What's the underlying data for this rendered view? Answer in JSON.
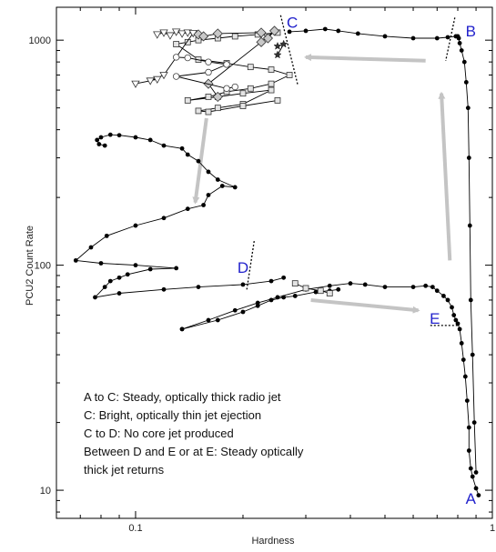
{
  "chart_data": {
    "type": "scatter",
    "xlabel": "Hardness",
    "ylabel": "PCU2 Count Rate",
    "xscale": "log",
    "yscale": "log",
    "xlim": [
      0.06,
      1.0
    ],
    "ylim": [
      7.5,
      1400
    ],
    "xticks": [
      {
        "value": 0.1,
        "label": "0.1"
      },
      {
        "value": 1,
        "label": "1"
      }
    ],
    "yticks": [
      {
        "value": 10,
        "label": "10"
      },
      {
        "value": 100,
        "label": "100"
      },
      {
        "value": 1000,
        "label": "1000"
      }
    ],
    "grid": false,
    "marker_labels": [
      {
        "text": "A",
        "x": 0.87,
        "y": 9.2
      },
      {
        "text": "B",
        "x": 0.87,
        "y": 1100
      },
      {
        "text": "C",
        "x": 0.275,
        "y": 1200
      },
      {
        "text": "D",
        "x": 0.2,
        "y": 98
      },
      {
        "text": "E",
        "x": 0.69,
        "y": 58
      }
    ],
    "annotation_lines": [
      "A to C: Steady, optically thick radio jet",
      "C: Bright, optically thin jet ejection",
      "C to D: No core jet produced",
      "Between D and E or at E: Steady optically",
      "thick jet returns"
    ],
    "jet_lines": [
      {
        "from": [
          0.255,
          1290
        ],
        "to": [
          0.285,
          630
        ]
      },
      {
        "from": [
          0.785,
          1260
        ],
        "to": [
          0.74,
          810
        ]
      },
      {
        "from": [
          0.215,
          128
        ],
        "to": [
          0.205,
          78
        ]
      },
      {
        "from": [
          0.67,
          54
        ],
        "to": [
          0.8,
          54
        ]
      }
    ],
    "arrows": [
      {
        "from": [
          0.65,
          810
        ],
        "to": [
          0.3,
          840
        ]
      },
      {
        "from": [
          0.76,
          105
        ],
        "to": [
          0.72,
          580
        ]
      },
      {
        "from": [
          0.158,
          450
        ],
        "to": [
          0.147,
          190
        ]
      },
      {
        "from": [
          0.31,
          70
        ],
        "to": [
          0.62,
          63
        ]
      }
    ],
    "series": [
      {
        "marker": "filled-circle",
        "points": [
          [
            0.915,
            9.5
          ],
          [
            0.9,
            10.2
          ],
          [
            0.88,
            11.5
          ],
          [
            0.87,
            12.5
          ],
          [
            0.86,
            15
          ],
          [
            0.86,
            19
          ],
          [
            0.85,
            25
          ],
          [
            0.84,
            32
          ],
          [
            0.83,
            38
          ],
          [
            0.82,
            45
          ],
          [
            0.81,
            52
          ],
          [
            0.8,
            55
          ],
          [
            0.79,
            57
          ],
          [
            0.78,
            60
          ],
          [
            0.77,
            65
          ],
          [
            0.75,
            70
          ],
          [
            0.73,
            73
          ],
          [
            0.7,
            77
          ],
          [
            0.68,
            80
          ],
          [
            0.65,
            81
          ],
          [
            0.6,
            80
          ],
          [
            0.5,
            80
          ],
          [
            0.44,
            82
          ],
          [
            0.4,
            83
          ],
          [
            0.35,
            81
          ],
          [
            0.3,
            78
          ],
          [
            0.25,
            72
          ],
          [
            0.22,
            68
          ],
          [
            0.19,
            63
          ],
          [
            0.16,
            57
          ],
          [
            0.135,
            52
          ]
        ]
      },
      {
        "marker": "filled-circle",
        "points": [
          [
            0.135,
            52
          ],
          [
            0.17,
            57
          ],
          [
            0.2,
            62
          ],
          [
            0.22,
            66
          ],
          [
            0.24,
            70
          ],
          [
            0.26,
            72
          ],
          [
            0.28,
            73
          ],
          [
            0.32,
            76
          ],
          [
            0.35,
            77
          ],
          [
            0.37,
            78
          ]
        ]
      },
      {
        "marker": "filled-circle",
        "points": [
          [
            0.26,
            88
          ],
          [
            0.24,
            85
          ],
          [
            0.2,
            82
          ],
          [
            0.15,
            80
          ],
          [
            0.12,
            78
          ],
          [
            0.09,
            75
          ],
          [
            0.077,
            72
          ],
          [
            0.082,
            80
          ],
          [
            0.085,
            85
          ],
          [
            0.09,
            88
          ],
          [
            0.095,
            91
          ],
          [
            0.11,
            96
          ],
          [
            0.13,
            97
          ],
          [
            0.1,
            100
          ],
          [
            0.08,
            102
          ],
          [
            0.068,
            105
          ],
          [
            0.075,
            120
          ],
          [
            0.083,
            135
          ],
          [
            0.1,
            150
          ],
          [
            0.12,
            162
          ],
          [
            0.14,
            178
          ],
          [
            0.155,
            185
          ],
          [
            0.16,
            205
          ],
          [
            0.175,
            225
          ],
          [
            0.19,
            222
          ],
          [
            0.17,
            240
          ],
          [
            0.16,
            260
          ],
          [
            0.15,
            290
          ],
          [
            0.14,
            310
          ],
          [
            0.135,
            330
          ],
          [
            0.12,
            340
          ],
          [
            0.11,
            360
          ],
          [
            0.1,
            370
          ],
          [
            0.09,
            378
          ],
          [
            0.085,
            380
          ],
          [
            0.08,
            370
          ],
          [
            0.078,
            360
          ],
          [
            0.079,
            345
          ],
          [
            0.082,
            340
          ]
        ]
      },
      {
        "marker": "filled-circle",
        "points": [
          [
            0.9,
            12
          ],
          [
            0.89,
            20
          ],
          [
            0.88,
            40
          ],
          [
            0.87,
            70
          ],
          [
            0.865,
            150
          ],
          [
            0.86,
            300
          ],
          [
            0.855,
            500
          ],
          [
            0.845,
            650
          ],
          [
            0.835,
            800
          ],
          [
            0.82,
            900
          ],
          [
            0.81,
            970
          ],
          [
            0.805,
            1020
          ],
          [
            0.8,
            1040
          ],
          [
            0.79,
            1040
          ],
          [
            0.75,
            1030
          ],
          [
            0.7,
            1020
          ],
          [
            0.6,
            1020
          ],
          [
            0.5,
            1040
          ],
          [
            0.42,
            1070
          ],
          [
            0.37,
            1100
          ],
          [
            0.34,
            1120
          ],
          [
            0.3,
            1100
          ],
          [
            0.27,
            1090
          ]
        ]
      },
      {
        "marker": "open-square",
        "points": [
          [
            0.25,
            1080
          ],
          [
            0.22,
            1060
          ],
          [
            0.19,
            1040
          ],
          [
            0.17,
            1020
          ],
          [
            0.15,
            1000
          ],
          [
            0.14,
            980
          ],
          [
            0.13,
            960
          ],
          [
            0.15,
            820
          ],
          [
            0.18,
            790
          ],
          [
            0.21,
            760
          ],
          [
            0.24,
            740
          ],
          [
            0.27,
            700
          ],
          [
            0.24,
            640
          ],
          [
            0.21,
            610
          ],
          [
            0.18,
            590
          ],
          [
            0.16,
            560
          ],
          [
            0.14,
            540
          ],
          [
            0.17,
            560
          ],
          [
            0.2,
            580
          ],
          [
            0.24,
            600
          ],
          [
            0.2,
            520
          ],
          [
            0.17,
            500
          ],
          [
            0.15,
            485
          ],
          [
            0.16,
            480
          ],
          [
            0.2,
            510
          ],
          [
            0.25,
            540
          ]
        ]
      },
      {
        "marker": "open-triangle-down",
        "points": [
          [
            0.115,
            1060
          ],
          [
            0.12,
            1080
          ],
          [
            0.125,
            1050
          ],
          [
            0.13,
            1090
          ],
          [
            0.135,
            1070
          ],
          [
            0.14,
            1080
          ],
          [
            0.145,
            1075
          ],
          [
            0.12,
            700
          ],
          [
            0.11,
            660
          ],
          [
            0.1,
            640
          ],
          [
            0.115,
            670
          ]
        ]
      },
      {
        "marker": "open-diamond",
        "points": [
          [
            0.15,
            1060
          ],
          [
            0.155,
            1040
          ],
          [
            0.17,
            1070
          ],
          [
            0.225,
            1080
          ],
          [
            0.235,
            1020
          ],
          [
            0.245,
            1100
          ],
          [
            0.225,
            980
          ],
          [
            0.16,
            640
          ],
          [
            0.17,
            560
          ]
        ]
      },
      {
        "marker": "open-circle",
        "points": [
          [
            0.13,
            840
          ],
          [
            0.14,
            835
          ],
          [
            0.16,
            800
          ],
          [
            0.18,
            780
          ],
          [
            0.16,
            720
          ],
          [
            0.13,
            690
          ],
          [
            0.18,
            610
          ],
          [
            0.19,
            620
          ]
        ]
      },
      {
        "marker": "star",
        "points": [
          [
            0.25,
            940
          ],
          [
            0.26,
            960
          ],
          [
            0.25,
            860
          ]
        ]
      },
      {
        "marker": "open-square",
        "points": [
          [
            0.28,
            83
          ],
          [
            0.3,
            79
          ],
          [
            0.33,
            77
          ],
          [
            0.35,
            75
          ]
        ]
      }
    ]
  }
}
